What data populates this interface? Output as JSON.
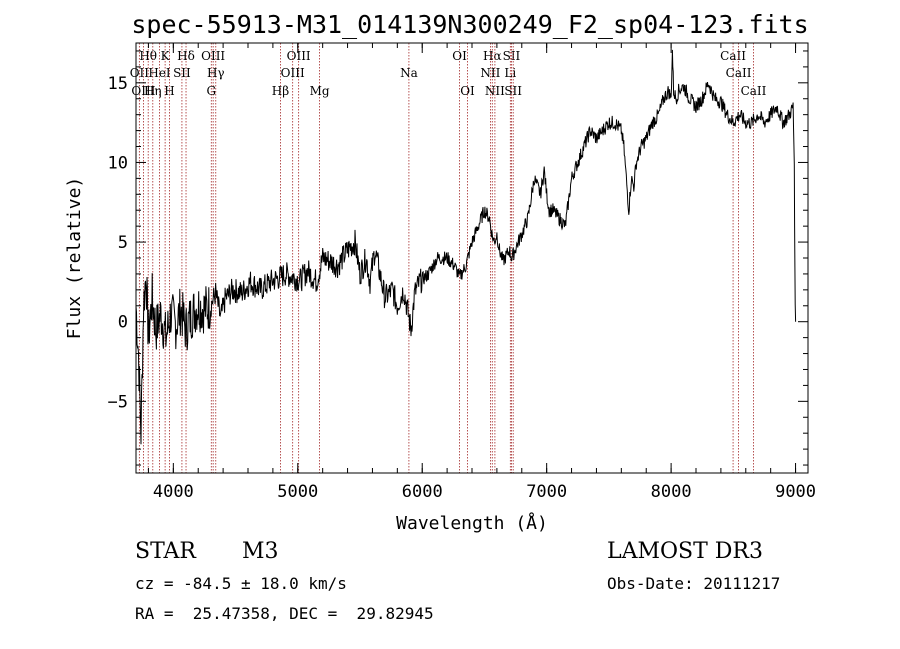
{
  "chart_data": {
    "type": "line",
    "title": "spec-55913-M31_014139N300249_F2_sp04-123.fits",
    "xlabel": "Wavelength (Å)",
    "ylabel": "Flux (relative)",
    "xlim": [
      3700,
      9100
    ],
    "ylim": [
      -9.5,
      17.5
    ],
    "xticks": [
      4000,
      5000,
      6000,
      7000,
      8000,
      9000
    ],
    "yticks": [
      -5,
      0,
      5,
      10,
      15
    ],
    "series": [
      {
        "name": "flux",
        "x": [
          3700,
          3720,
          3740,
          3760,
          3780,
          3800,
          3830,
          3860,
          3900,
          3940,
          3980,
          4020,
          4060,
          4100,
          4150,
          4200,
          4250,
          4300,
          4340,
          4380,
          4420,
          4480,
          4550,
          4620,
          4700,
          4780,
          4860,
          4900,
          4960,
          5020,
          5080,
          5150,
          5200,
          5260,
          5320,
          5400,
          5460,
          5500,
          5550,
          5580,
          5620,
          5660,
          5700,
          5760,
          5800,
          5850,
          5880,
          5910,
          5940,
          5980,
          6050,
          6120,
          6200,
          6260,
          6300,
          6350,
          6400,
          6450,
          6500,
          6540,
          6560,
          6580,
          6600,
          6620,
          6650,
          6680,
          6700,
          6720,
          6760,
          6800,
          6850,
          6900,
          6950,
          6980,
          7000,
          7020,
          7050,
          7100,
          7150,
          7200,
          7250,
          7300,
          7350,
          7400,
          7450,
          7500,
          7550,
          7600,
          7620,
          7640,
          7660,
          7680,
          7700,
          7720,
          7760,
          7800,
          7850,
          7900,
          7940,
          7980,
          8000,
          8010,
          8020,
          8040,
          8060,
          8100,
          8150,
          8200,
          8250,
          8300,
          8350,
          8400,
          8450,
          8500,
          8550,
          8600,
          8650,
          8700,
          8750,
          8800,
          8850,
          8900,
          8950,
          8980,
          8990,
          8995,
          9000
        ],
        "values": [
          1.0,
          -2.0,
          -7.0,
          1.0,
          3.0,
          -1.0,
          1.5,
          -0.5,
          0.5,
          -1.0,
          0.5,
          -0.2,
          0.8,
          -0.5,
          0.5,
          1.0,
          0.8,
          1.0,
          1.8,
          0.2,
          1.5,
          2.0,
          1.8,
          2.5,
          2.0,
          2.5,
          2.8,
          3.0,
          2.8,
          2.6,
          3.2,
          2.5,
          4.0,
          3.8,
          3.5,
          4.5,
          5.0,
          3.0,
          4.0,
          2.5,
          4.5,
          3.0,
          1.5,
          2.0,
          1.0,
          2.0,
          0.8,
          -0.5,
          1.8,
          2.5,
          3.0,
          4.0,
          4.0,
          3.5,
          2.8,
          3.5,
          5.0,
          6.0,
          7.0,
          6.5,
          5.5,
          5.0,
          5.5,
          4.5,
          3.8,
          4.2,
          4.5,
          4.0,
          4.8,
          5.5,
          6.5,
          9.0,
          8.0,
          9.5,
          8.0,
          7.0,
          7.0,
          6.5,
          6.0,
          9.0,
          10.0,
          11.0,
          12.0,
          11.5,
          12.0,
          12.5,
          12.5,
          12.0,
          11.0,
          9.0,
          7.0,
          9.0,
          8.5,
          10.0,
          11.0,
          11.5,
          12.5,
          13.0,
          14.0,
          14.5,
          14.0,
          17.0,
          14.5,
          14.0,
          14.5,
          14.8,
          14.0,
          13.5,
          14.0,
          15.0,
          14.0,
          13.8,
          13.0,
          12.5,
          13.0,
          12.5,
          12.5,
          13.0,
          12.5,
          13.0,
          13.5,
          12.5,
          13.0,
          13.5,
          10.0,
          3.0,
          0.0
        ]
      }
    ],
    "emission_lines": [
      {
        "label": "OII",
        "x": 3727,
        "row": 2
      },
      {
        "label": "Hθ",
        "x": 3798,
        "row": 1
      },
      {
        "label": "OIII",
        "x": 3760,
        "row": 3
      },
      {
        "label": "K",
        "x": 3934,
        "row": 1
      },
      {
        "label": "HeI",
        "x": 3889,
        "row": 2
      },
      {
        "label": "Hη",
        "x": 3835,
        "row": 3
      },
      {
        "label": "H",
        "x": 3969,
        "row": 3
      },
      {
        "label": "SII",
        "x": 4069,
        "row": 2
      },
      {
        "label": "Hδ",
        "x": 4102,
        "row": 1
      },
      {
        "label": "OIII",
        "x": 4320,
        "row": 1
      },
      {
        "label": "Hγ",
        "x": 4341,
        "row": 2
      },
      {
        "label": "G",
        "x": 4305,
        "row": 3
      },
      {
        "label": "Hβ",
        "x": 4861,
        "row": 3
      },
      {
        "label": "OIII",
        "x": 5007,
        "row": 1
      },
      {
        "label": "OIII",
        "x": 4959,
        "row": 2
      },
      {
        "label": "Mg",
        "x": 5175,
        "row": 3
      },
      {
        "label": "Na",
        "x": 5893,
        "row": 2
      },
      {
        "label": "OI",
        "x": 6300,
        "row": 1
      },
      {
        "label": "OI",
        "x": 6364,
        "row": 3
      },
      {
        "label": "Hα",
        "x": 6563,
        "row": 1
      },
      {
        "label": "NII",
        "x": 6548,
        "row": 2
      },
      {
        "label": "NII",
        "x": 6584,
        "row": 3
      },
      {
        "label": "SII",
        "x": 6717,
        "row": 1
      },
      {
        "label": "Li",
        "x": 6708,
        "row": 2
      },
      {
        "label": "SII",
        "x": 6731,
        "row": 3
      },
      {
        "label": "CaII",
        "x": 8498,
        "row": 1
      },
      {
        "label": "CaII",
        "x": 8542,
        "row": 2
      },
      {
        "label": "CaII",
        "x": 8662,
        "row": 3
      }
    ]
  },
  "info": {
    "object_class": "STAR",
    "subclass": "M3",
    "survey": "LAMOST DR3",
    "cz_line": "cz = -84.5 ± 18.0 km/s",
    "obs_date_line": "Obs-Date: 20111217",
    "radec_line": "RA =  25.47358, DEC =  29.82945"
  },
  "colors": {
    "line_marker": "#a52a2a",
    "spectrum": "#000000"
  }
}
